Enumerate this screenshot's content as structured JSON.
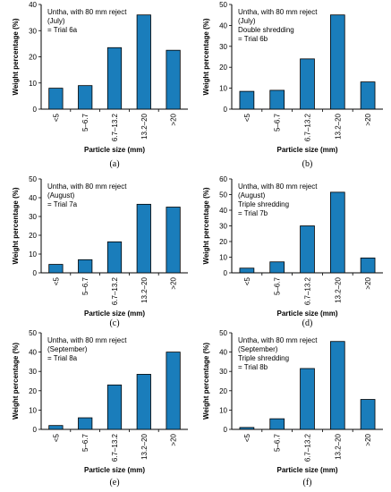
{
  "colors": {
    "bar_fill": "#1a7dbb",
    "bar_stroke": "#000000",
    "axis": "#000000"
  },
  "chart_data": [
    {
      "type": "bar",
      "panel_label": "(a)",
      "annotation": [
        "Untha, with 80 mm reject",
        "(July)",
        "= Trial 6a"
      ],
      "xlabel": "Particle size (mm)",
      "ylabel": "Weight percentage (%)",
      "ylim": [
        0,
        40
      ],
      "yticks": [
        "0",
        "10",
        "20",
        "30",
        "40"
      ],
      "categories": [
        "<5",
        "5–6.7",
        "6.7–13.2",
        "13.2–20",
        ">20"
      ],
      "values": [
        8,
        9,
        23.5,
        36,
        22.5
      ]
    },
    {
      "type": "bar",
      "panel_label": "(b)",
      "annotation": [
        "Untha, with 80 mm reject",
        "(July)",
        "Double shredding",
        "= Trial 6b"
      ],
      "xlabel": "Particle size (mm)",
      "ylabel": "Weight percentage (%)",
      "ylim": [
        0,
        50
      ],
      "yticks": [
        "0",
        "10",
        "20",
        "30",
        "40",
        "50"
      ],
      "categories": [
        "<5",
        "5–6.7",
        "6.7–13.2",
        "13.2–20",
        ">20"
      ],
      "values": [
        8.5,
        9,
        24,
        45,
        13
      ]
    },
    {
      "type": "bar",
      "panel_label": "(c)",
      "annotation": [
        "Untha, with 80 mm reject",
        "(August)",
        "= Trial 7a"
      ],
      "xlabel": "Particle size (mm)",
      "ylabel": "Weight percentage (%)",
      "ylim": [
        0,
        50
      ],
      "yticks": [
        "0",
        "10",
        "20",
        "30",
        "40",
        "50"
      ],
      "categories": [
        "<5",
        "5–6.7",
        "6.7–13.2",
        "13.2–20",
        ">20"
      ],
      "values": [
        4.5,
        7,
        16.5,
        36.5,
        35
      ]
    },
    {
      "type": "bar",
      "panel_label": "(d)",
      "annotation": [
        "Untha, with 80 mm reject",
        "(August)",
        "Triple shredding",
        "= Trial 7b"
      ],
      "xlabel": "Particle size (mm)",
      "ylabel": "Weight percentage (%)",
      "ylim": [
        0,
        60
      ],
      "yticks": [
        "0",
        "10",
        "20",
        "30",
        "40",
        "50",
        "60"
      ],
      "categories": [
        "<5",
        "5–6.7",
        "6.7–13.2",
        "13.2–20",
        ">20"
      ],
      "values": [
        3,
        7,
        30,
        51.5,
        9.5
      ]
    },
    {
      "type": "bar",
      "panel_label": "(e)",
      "annotation": [
        "Untha, with 80 mm reject",
        "(September)",
        "= Trial 8a"
      ],
      "xlabel": "Particle size (mm)",
      "ylabel": "Weight percentage (%)",
      "ylim": [
        0,
        50
      ],
      "yticks": [
        "0",
        "10",
        "20",
        "30",
        "40",
        "50"
      ],
      "categories": [
        "<5",
        "5–6.7",
        "6.7–13.2",
        "13.2–20",
        ">20"
      ],
      "values": [
        2,
        6,
        23,
        28.5,
        40
      ]
    },
    {
      "type": "bar",
      "panel_label": "(f)",
      "annotation": [
        "Untha, with 80 mm reject",
        "(September)",
        "Triple shredding",
        "= Trial 8b"
      ],
      "xlabel": "Particle size (mm)",
      "ylabel": "Weight percentage (%)",
      "ylim": [
        0,
        50
      ],
      "yticks": [
        "0",
        "10",
        "20",
        "30",
        "40",
        "50"
      ],
      "categories": [
        "<5",
        "5–6.7",
        "6.7–13.2",
        "13.2–20",
        ">20"
      ],
      "values": [
        1,
        5.5,
        31.5,
        45.5,
        15.5
      ]
    }
  ]
}
